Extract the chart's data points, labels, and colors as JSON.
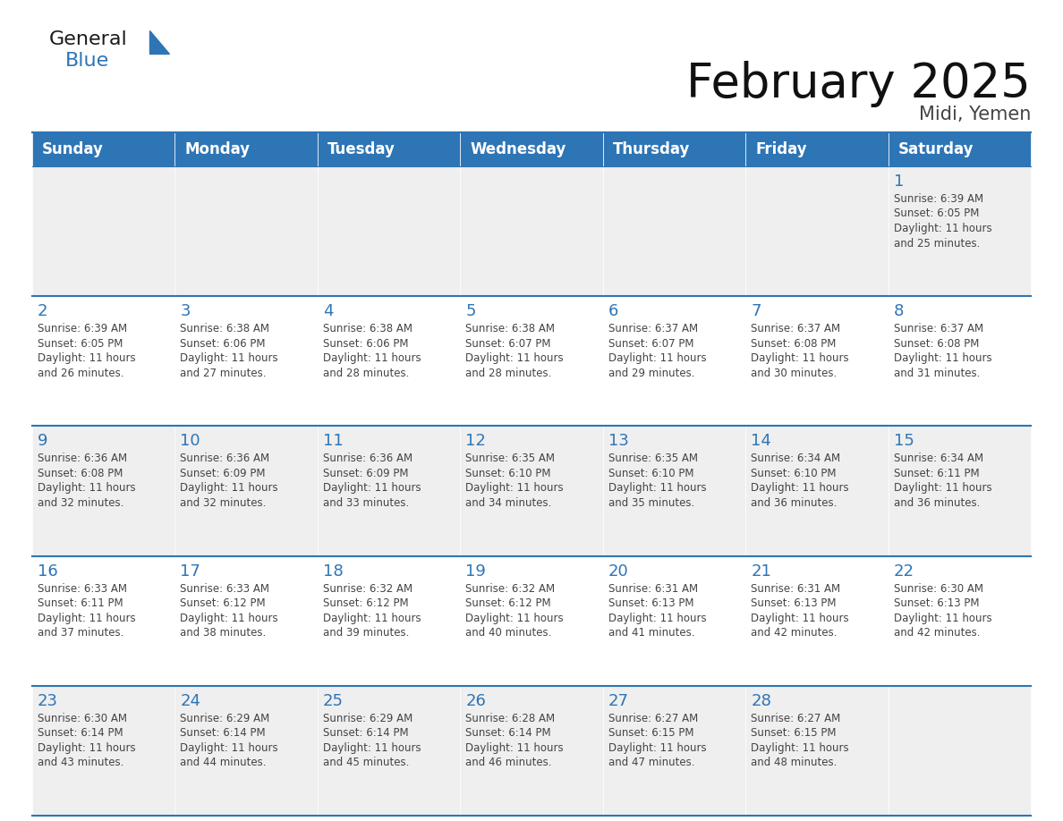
{
  "title": "February 2025",
  "subtitle": "Midi, Yemen",
  "days_of_week": [
    "Sunday",
    "Monday",
    "Tuesday",
    "Wednesday",
    "Thursday",
    "Friday",
    "Saturday"
  ],
  "header_bg": "#2E75B6",
  "header_text": "#FFFFFF",
  "cell_bg_light": "#EFEFEF",
  "cell_bg_white": "#FFFFFF",
  "border_color": "#2E75B6",
  "day_num_color": "#2E75B6",
  "text_color": "#444444",
  "calendar_data": [
    [
      null,
      null,
      null,
      null,
      null,
      null,
      1
    ],
    [
      2,
      3,
      4,
      5,
      6,
      7,
      8
    ],
    [
      9,
      10,
      11,
      12,
      13,
      14,
      15
    ],
    [
      16,
      17,
      18,
      19,
      20,
      21,
      22
    ],
    [
      23,
      24,
      25,
      26,
      27,
      28,
      null
    ]
  ],
  "sunrise_data": {
    "1": [
      "6:39 AM",
      "6:05 PM",
      "11 hours",
      "25 minutes"
    ],
    "2": [
      "6:39 AM",
      "6:05 PM",
      "11 hours",
      "26 minutes"
    ],
    "3": [
      "6:38 AM",
      "6:06 PM",
      "11 hours",
      "27 minutes"
    ],
    "4": [
      "6:38 AM",
      "6:06 PM",
      "11 hours",
      "28 minutes"
    ],
    "5": [
      "6:38 AM",
      "6:07 PM",
      "11 hours",
      "28 minutes"
    ],
    "6": [
      "6:37 AM",
      "6:07 PM",
      "11 hours",
      "29 minutes"
    ],
    "7": [
      "6:37 AM",
      "6:08 PM",
      "11 hours",
      "30 minutes"
    ],
    "8": [
      "6:37 AM",
      "6:08 PM",
      "11 hours",
      "31 minutes"
    ],
    "9": [
      "6:36 AM",
      "6:08 PM",
      "11 hours",
      "32 minutes"
    ],
    "10": [
      "6:36 AM",
      "6:09 PM",
      "11 hours",
      "32 minutes"
    ],
    "11": [
      "6:36 AM",
      "6:09 PM",
      "11 hours",
      "33 minutes"
    ],
    "12": [
      "6:35 AM",
      "6:10 PM",
      "11 hours",
      "34 minutes"
    ],
    "13": [
      "6:35 AM",
      "6:10 PM",
      "11 hours",
      "35 minutes"
    ],
    "14": [
      "6:34 AM",
      "6:10 PM",
      "11 hours",
      "36 minutes"
    ],
    "15": [
      "6:34 AM",
      "6:11 PM",
      "11 hours",
      "36 minutes"
    ],
    "16": [
      "6:33 AM",
      "6:11 PM",
      "11 hours",
      "37 minutes"
    ],
    "17": [
      "6:33 AM",
      "6:12 PM",
      "11 hours",
      "38 minutes"
    ],
    "18": [
      "6:32 AM",
      "6:12 PM",
      "11 hours",
      "39 minutes"
    ],
    "19": [
      "6:32 AM",
      "6:12 PM",
      "11 hours",
      "40 minutes"
    ],
    "20": [
      "6:31 AM",
      "6:13 PM",
      "11 hours",
      "41 minutes"
    ],
    "21": [
      "6:31 AM",
      "6:13 PM",
      "11 hours",
      "42 minutes"
    ],
    "22": [
      "6:30 AM",
      "6:13 PM",
      "11 hours",
      "42 minutes"
    ],
    "23": [
      "6:30 AM",
      "6:14 PM",
      "11 hours",
      "43 minutes"
    ],
    "24": [
      "6:29 AM",
      "6:14 PM",
      "11 hours",
      "44 minutes"
    ],
    "25": [
      "6:29 AM",
      "6:14 PM",
      "11 hours",
      "45 minutes"
    ],
    "26": [
      "6:28 AM",
      "6:14 PM",
      "11 hours",
      "46 minutes"
    ],
    "27": [
      "6:27 AM",
      "6:15 PM",
      "11 hours",
      "47 minutes"
    ],
    "28": [
      "6:27 AM",
      "6:15 PM",
      "11 hours",
      "48 minutes"
    ]
  },
  "logo_text1": "General",
  "logo_text2": "Blue",
  "logo_color1": "#1a1a1a",
  "logo_color2": "#2E75B6",
  "title_fontsize": 38,
  "subtitle_fontsize": 15,
  "header_fontsize": 12,
  "day_num_fontsize": 13,
  "cell_text_fontsize": 8.5
}
